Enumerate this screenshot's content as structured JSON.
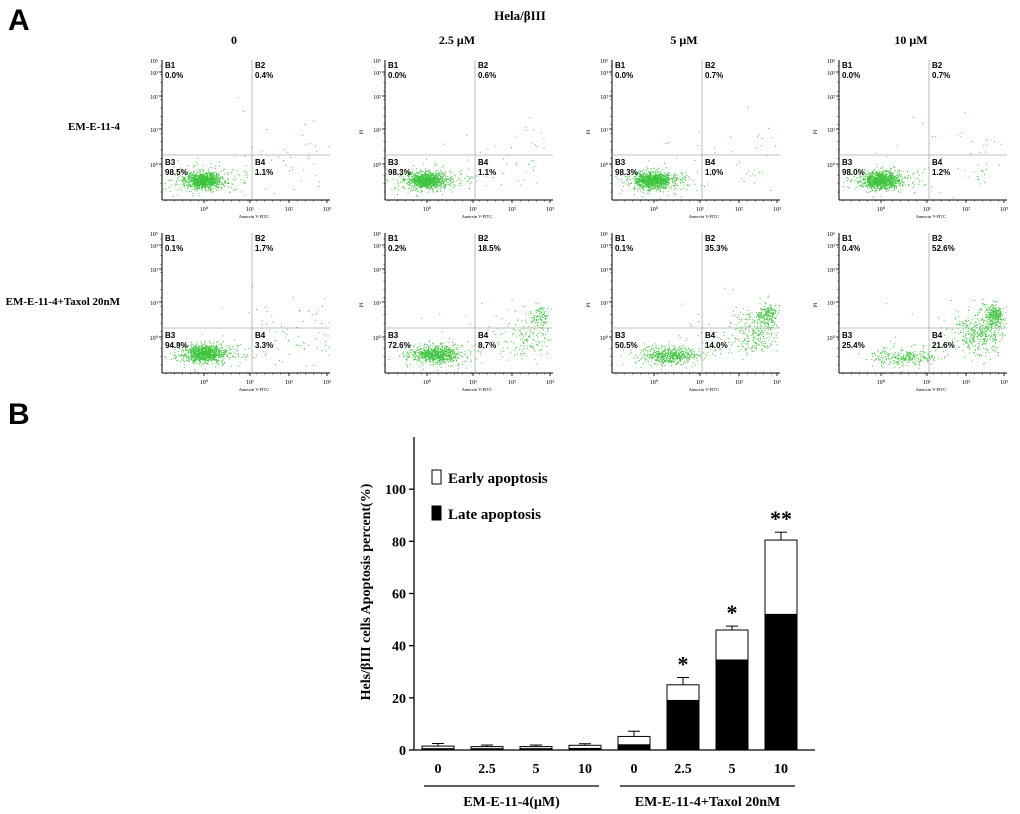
{
  "panel_a": {
    "letter": "A",
    "title": "Hela/βIII",
    "columns": [
      "0",
      "2.5 μM",
      "5 μM",
      "10 μM"
    ],
    "rows": [
      "EM-E-11-4",
      "EM-E-11-4+Taxol 20nM"
    ],
    "x_axis_label": "Annexin V-FITC",
    "y_axis_label": "PI",
    "tick_labels": [
      "10⁰",
      "10¹",
      "10²",
      "10³"
    ],
    "y_tick_labels": [
      "10⁰",
      "10¹",
      "10²",
      "10³"
    ],
    "y_top_tick": "10⁵",
    "quadrant_names": [
      "B1",
      "B2",
      "B3",
      "B4"
    ],
    "dot_color": "#3cc43c",
    "line_color": "#aaaaaa"
  },
  "chart_data": [
    {
      "type": "scatter",
      "description_kind": "flow-cytometry-quadrant-grid",
      "panels": [
        {
          "row": "EM-E-11-4",
          "column": "0",
          "B1": "0.0%",
          "B2": "0.4%",
          "B3": "98.5%",
          "B4": "1.1%"
        },
        {
          "row": "EM-E-11-4",
          "column": "2.5 μM",
          "B1": "0.0%",
          "B2": "0.6%",
          "B3": "98.3%",
          "B4": "1.1%"
        },
        {
          "row": "EM-E-11-4",
          "column": "5 μM",
          "B1": "0.0%",
          "B2": "0.7%",
          "B3": "98.3%",
          "B4": "1.0%"
        },
        {
          "row": "EM-E-11-4",
          "column": "10 μM",
          "B1": "0.0%",
          "B2": "0.7%",
          "B3": "98.0%",
          "B4": "1.2%"
        },
        {
          "row": "EM-E-11-4+Taxol 20nM",
          "column": "0",
          "B1": "0.1%",
          "B2": "1.7%",
          "B3": "94.9%",
          "B4": "3.3%"
        },
        {
          "row": "EM-E-11-4+Taxol 20nM",
          "column": "2.5 μM",
          "B1": "0.2%",
          "B2": "18.5%",
          "B3": "72.6%",
          "B4": "8.7%"
        },
        {
          "row": "EM-E-11-4+Taxol 20nM",
          "column": "5 μM",
          "B1": "0.1%",
          "B2": "35.3%",
          "B3": "50.5%",
          "B4": "14.0%"
        },
        {
          "row": "EM-E-11-4+Taxol 20nM",
          "column": "10 μM",
          "B1": "0.4%",
          "B2": "52.6%",
          "B3": "25.4%",
          "B4": "21.6%"
        }
      ]
    },
    {
      "type": "bar",
      "letter": "B",
      "stacked": true,
      "categories": [
        "0",
        "2.5",
        "5",
        "10",
        "0",
        "2.5",
        "5",
        "10"
      ],
      "groups": [
        {
          "label": "EM-E-11-4(μM)",
          "indices": [
            0,
            1,
            2,
            3
          ]
        },
        {
          "label": "EM-E-11-4+Taxol 20nM",
          "indices": [
            4,
            5,
            6,
            7
          ]
        }
      ],
      "series": [
        {
          "name": "Late apoptosis",
          "color": "#000000",
          "values": [
            0.5,
            0.5,
            0.5,
            0.6,
            2.0,
            19.0,
            34.5,
            52.0
          ]
        },
        {
          "name": "Early apoptosis",
          "color": "#ffffff",
          "values": [
            1.0,
            0.8,
            0.8,
            1.2,
            3.2,
            6.0,
            11.5,
            28.5
          ]
        }
      ],
      "error": [
        1.0,
        0.6,
        0.6,
        0.6,
        2.0,
        2.8,
        1.5,
        3.0
      ],
      "significance": [
        "",
        "",
        "",
        "",
        "",
        "*",
        "*",
        "**"
      ],
      "ylabel": "Hels/βIII cells Apoptosis percent(%)",
      "ylim": [
        0,
        120
      ],
      "yticks": [
        0,
        20,
        40,
        60,
        80,
        100
      ],
      "legend_placement": "top-left"
    }
  ]
}
